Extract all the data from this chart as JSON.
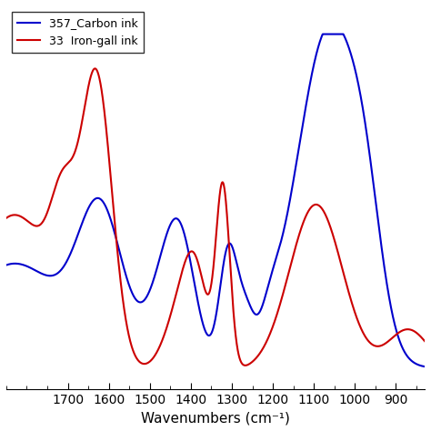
{
  "title": "",
  "xlabel": "Wavenumbers (cm⁻¹)",
  "xlim": [
    1850,
    830
  ],
  "xticks": [
    1700,
    1600,
    1500,
    1400,
    1300,
    1200,
    1100,
    1000,
    900
  ],
  "blue_label": "357_Carbon ink",
  "red_label": "33  Iron-gall ink",
  "blue_color": "#0000cc",
  "red_color": "#cc0000",
  "background_color": "#ffffff"
}
